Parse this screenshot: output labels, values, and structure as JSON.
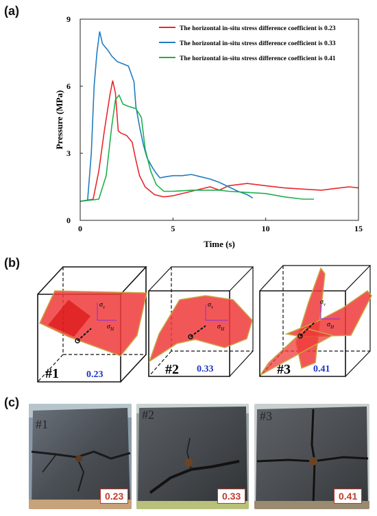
{
  "panels": {
    "a": "(a)",
    "b": "(b)",
    "c": "(c)"
  },
  "chart_data": {
    "type": "line",
    "xlabel": "Time (s)",
    "ylabel": "Pressure (MPa)",
    "xlim": [
      0,
      15
    ],
    "ylim": [
      0,
      9
    ],
    "xticks": [
      0,
      5,
      10,
      15
    ],
    "yticks": [
      0,
      3,
      6,
      9
    ],
    "legend_position": "top-right",
    "series": [
      {
        "name": "The horizontal in-situ stress difference coefficient is 0.23",
        "color": "#e8262a",
        "x": [
          0,
          0.7,
          1.0,
          1.3,
          1.6,
          1.75,
          1.9,
          2.05,
          2.2,
          2.5,
          2.8,
          3.0,
          3.2,
          3.5,
          4.0,
          4.5,
          5.0,
          6.0,
          7.0,
          7.5,
          8.0,
          9.0,
          10.0,
          11.0,
          12.0,
          13.0,
          14.0,
          14.5,
          15.0
        ],
        "y": [
          0.85,
          0.95,
          2.2,
          4.0,
          5.6,
          6.25,
          5.7,
          4.0,
          3.9,
          3.8,
          3.5,
          2.7,
          2.0,
          1.5,
          1.15,
          1.05,
          1.1,
          1.3,
          1.5,
          1.35,
          1.55,
          1.65,
          1.55,
          1.45,
          1.4,
          1.35,
          1.45,
          1.5,
          1.45
        ]
      },
      {
        "name": "The horizontal in-situ stress difference coefficient is 0.33",
        "color": "#1f7bc1",
        "x": [
          0,
          0.4,
          0.6,
          0.75,
          0.9,
          1.05,
          1.2,
          1.5,
          1.7,
          2.0,
          2.3,
          2.6,
          2.9,
          3.0,
          3.2,
          3.4,
          3.6,
          3.9,
          4.1,
          4.3,
          4.6,
          5.0,
          5.5,
          6.0,
          6.5,
          7.0,
          7.5,
          8.0,
          8.5,
          9.0,
          9.3
        ],
        "y": [
          0.85,
          0.9,
          3.0,
          6.0,
          7.5,
          8.45,
          7.9,
          7.6,
          7.35,
          7.1,
          7.0,
          6.9,
          6.2,
          5.1,
          4.2,
          3.4,
          2.8,
          2.35,
          2.1,
          1.9,
          1.95,
          2.0,
          2.0,
          2.05,
          1.95,
          1.85,
          1.7,
          1.5,
          1.3,
          1.15,
          1.0
        ]
      },
      {
        "name": "The horizontal in-situ stress difference coefficient is 0.41",
        "color": "#1faf4b",
        "x": [
          0,
          1.0,
          1.4,
          1.7,
          1.9,
          2.1,
          2.3,
          2.6,
          3.0,
          3.3,
          3.5,
          3.8,
          4.1,
          4.5,
          5.0,
          6.0,
          7.0,
          7.5,
          8.0,
          9.0,
          10.0,
          11.0,
          12.0,
          12.6
        ],
        "y": [
          0.85,
          0.95,
          2.0,
          4.2,
          5.4,
          5.6,
          5.2,
          5.1,
          5.0,
          4.6,
          3.2,
          2.2,
          1.6,
          1.3,
          1.3,
          1.35,
          1.35,
          1.35,
          1.3,
          1.25,
          1.2,
          1.05,
          0.95,
          0.95
        ]
      }
    ]
  },
  "diagram": {
    "blocks": [
      {
        "id": "#1",
        "coef": "0.23"
      },
      {
        "id": "#2",
        "coef": "0.33"
      },
      {
        "id": "#3",
        "coef": "0.41"
      }
    ],
    "sigma_v": "σ",
    "sigma_v_sub": "v",
    "sigma_h": "σ",
    "sigma_h_sub": "H"
  },
  "photos": [
    {
      "tag": "#1",
      "coef": "0.23"
    },
    {
      "tag": "#2",
      "coef": "0.33"
    },
    {
      "tag": "#3",
      "coef": "0.41"
    }
  ]
}
